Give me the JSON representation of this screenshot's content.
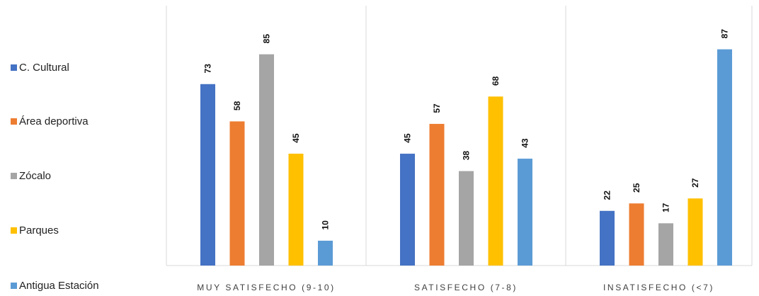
{
  "chart_data": {
    "type": "bar",
    "title": "",
    "xlabel": "",
    "ylabel": "",
    "ylim": [
      0,
      100
    ],
    "grid": false,
    "legend_position": "left",
    "categories": [
      "MUY SATISFECHO (9-10)",
      "SATISFECHO  (7-8)",
      "INSATISFECHO (<7)"
    ],
    "series": [
      {
        "name": "C. Cultural",
        "color": "#4472c4",
        "values": [
          73,
          45,
          22
        ]
      },
      {
        "name": "Área deportiva",
        "color": "#ed7d31",
        "values": [
          58,
          57,
          25
        ]
      },
      {
        "name": "Zócalo",
        "color": "#a5a5a5",
        "values": [
          85,
          38,
          17
        ]
      },
      {
        "name": "Parques",
        "color": "#ffc000",
        "values": [
          45,
          68,
          27
        ]
      },
      {
        "name": "Antigua Estación",
        "color": "#5b9bd5",
        "values": [
          10,
          43,
          87
        ]
      }
    ]
  }
}
